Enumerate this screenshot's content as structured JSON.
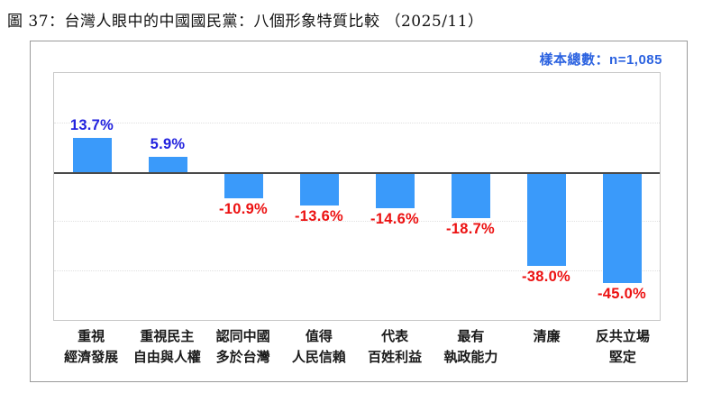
{
  "title": "圖 37：台灣人眼中的中國國民黨：八個形象特質比較 （2025/11）",
  "sample_note": "樣本總數：n=1,085",
  "colors": {
    "bar": "#3a9afa",
    "positive_label": "#2121de",
    "negative_label": "#ec1111",
    "sample_note": "#2b62e0",
    "zero_line": "#4a4a4a",
    "gridline": "#e0e0e0"
  },
  "chart_data": {
    "type": "bar",
    "title": "台灣人眼中的中國國民黨：八個形象特質比較",
    "categories": [
      [
        "重視",
        "經濟發展"
      ],
      [
        "重視民主",
        "自由與人權"
      ],
      [
        "認同中國",
        "多於台灣"
      ],
      [
        "值得",
        "人民信賴"
      ],
      [
        "代表",
        "百姓利益"
      ],
      [
        "最有",
        "執政能力"
      ],
      [
        "清廉"
      ],
      [
        "反共立場",
        "堅定"
      ]
    ],
    "values": [
      13.7,
      5.9,
      -10.9,
      -13.6,
      -14.6,
      -18.7,
      -38.0,
      -45.0
    ],
    "value_labels": [
      "13.7%",
      "5.9%",
      "-10.9%",
      "-13.6%",
      "-14.6%",
      "-18.7%",
      "-38.0%",
      "-45.0%"
    ],
    "xlabel": "",
    "ylabel": "",
    "ylim": [
      -60,
      40
    ],
    "gridlines": [
      20,
      -20,
      -40
    ],
    "grid": true,
    "legend": false
  }
}
